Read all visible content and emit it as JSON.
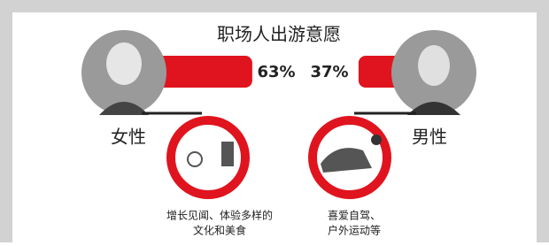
{
  "title": "职场人出游意愿",
  "groups": [
    {
      "name": "女性",
      "share": {
        "value": 63,
        "label": "63%"
      },
      "caption": [
        "增长见闻、体验多样的",
        "文化和美食"
      ]
    },
    {
      "name": "男性",
      "share": {
        "value": 37,
        "label": "37%"
      },
      "caption": [
        "喜爱自驾、",
        "户外运动等"
      ]
    }
  ]
}
